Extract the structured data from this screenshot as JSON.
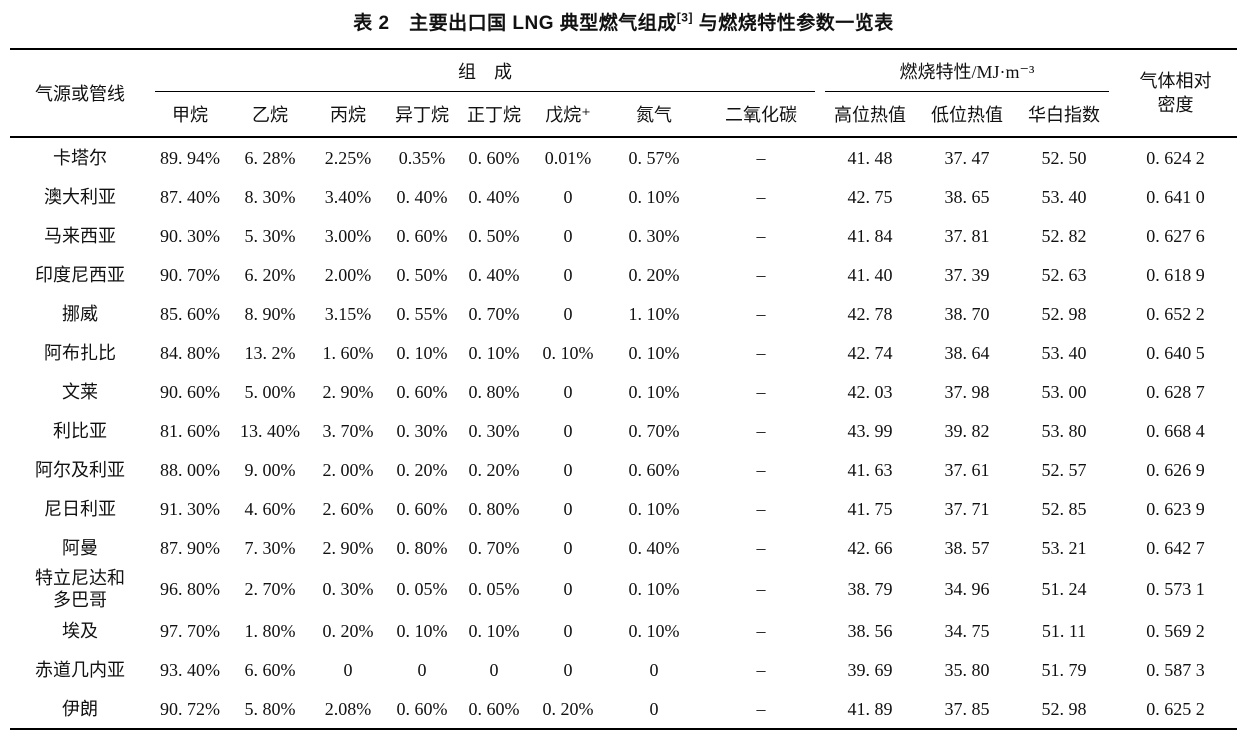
{
  "title": {
    "prefix": "表 2　主要出口国 LNG 典型燃气组成",
    "sup": "[3]",
    "suffix": " 与燃烧特性参数一览表"
  },
  "table": {
    "source_header": "气源或管线",
    "composition_group": "组　成",
    "combustion_group": "燃烧特性/MJ·m⁻³",
    "density_header": "气体相对\n密度",
    "composition_cols": [
      "甲烷",
      "乙烷",
      "丙烷",
      "异丁烷",
      "正丁烷",
      "戊烷⁺",
      "氮气",
      "二氧化碳"
    ],
    "combustion_cols": [
      "高位热值",
      "低位热值",
      "华白指数"
    ],
    "rows": [
      [
        "卡塔尔",
        "89. 94%",
        "6. 28%",
        "2.25%",
        "0.35%",
        "0. 60%",
        "0.01%",
        "0. 57%",
        "–",
        "41. 48",
        "37. 47",
        "52. 50",
        "0. 624 2"
      ],
      [
        "澳大利亚",
        "87. 40%",
        "8. 30%",
        "3.40%",
        "0. 40%",
        "0. 40%",
        "0",
        "0. 10%",
        "–",
        "42. 75",
        "38. 65",
        "53. 40",
        "0. 641 0"
      ],
      [
        "马来西亚",
        "90. 30%",
        "5. 30%",
        "3.00%",
        "0. 60%",
        "0. 50%",
        "0",
        "0. 30%",
        "–",
        "41. 84",
        "37. 81",
        "52. 82",
        "0. 627 6"
      ],
      [
        "印度尼西亚",
        "90. 70%",
        "6. 20%",
        "2.00%",
        "0. 50%",
        "0. 40%",
        "0",
        "0. 20%",
        "–",
        "41. 40",
        "37. 39",
        "52. 63",
        "0. 618 9"
      ],
      [
        "挪威",
        "85. 60%",
        "8. 90%",
        "3.15%",
        "0. 55%",
        "0. 70%",
        "0",
        "1. 10%",
        "–",
        "42. 78",
        "38. 70",
        "52. 98",
        "0. 652 2"
      ],
      [
        "阿布扎比",
        "84. 80%",
        "13. 2%",
        "1. 60%",
        "0. 10%",
        "0. 10%",
        "0. 10%",
        "0. 10%",
        "–",
        "42. 74",
        "38. 64",
        "53. 40",
        "0. 640 5"
      ],
      [
        "文莱",
        "90. 60%",
        "5. 00%",
        "2. 90%",
        "0. 60%",
        "0. 80%",
        "0",
        "0. 10%",
        "–",
        "42. 03",
        "37. 98",
        "53. 00",
        "0. 628 7"
      ],
      [
        "利比亚",
        "81. 60%",
        "13. 40%",
        "3. 70%",
        "0. 30%",
        "0. 30%",
        "0",
        "0. 70%",
        "–",
        "43. 99",
        "39. 82",
        "53. 80",
        "0. 668 4"
      ],
      [
        "阿尔及利亚",
        "88. 00%",
        "9. 00%",
        "2. 00%",
        "0. 20%",
        "0. 20%",
        "0",
        "0. 60%",
        "–",
        "41. 63",
        "37. 61",
        "52. 57",
        "0. 626 9"
      ],
      [
        "尼日利亚",
        "91. 30%",
        "4. 60%",
        "2. 60%",
        "0. 60%",
        "0. 80%",
        "0",
        "0. 10%",
        "–",
        "41. 75",
        "37. 71",
        "52. 85",
        "0. 623 9"
      ],
      [
        "阿曼",
        "87. 90%",
        "7. 30%",
        "2. 90%",
        "0. 80%",
        "0. 70%",
        "0",
        "0. 40%",
        "–",
        "42. 66",
        "38. 57",
        "53. 21",
        "0. 642 7"
      ],
      [
        "特立尼达和\n多巴哥",
        "96. 80%",
        "2. 70%",
        "0. 30%",
        "0. 05%",
        "0. 05%",
        "0",
        "0. 10%",
        "–",
        "38. 79",
        "34. 96",
        "51. 24",
        "0. 573 1"
      ],
      [
        "埃及",
        "97. 70%",
        "1. 80%",
        "0. 20%",
        "0. 10%",
        "0. 10%",
        "0",
        "0. 10%",
        "–",
        "38. 56",
        "34. 75",
        "51. 11",
        "0. 569 2"
      ],
      [
        "赤道几内亚",
        "93. 40%",
        "6. 60%",
        "0",
        "0",
        "0",
        "0",
        "0",
        "–",
        "39. 69",
        "35. 80",
        "51. 79",
        "0. 587 3"
      ],
      [
        "伊朗",
        "90. 72%",
        "5. 80%",
        "2.08%",
        "0. 60%",
        "0. 60%",
        "0. 20%",
        "0",
        "–",
        "41. 89",
        "37. 85",
        "52. 98",
        "0. 625 2"
      ]
    ]
  }
}
